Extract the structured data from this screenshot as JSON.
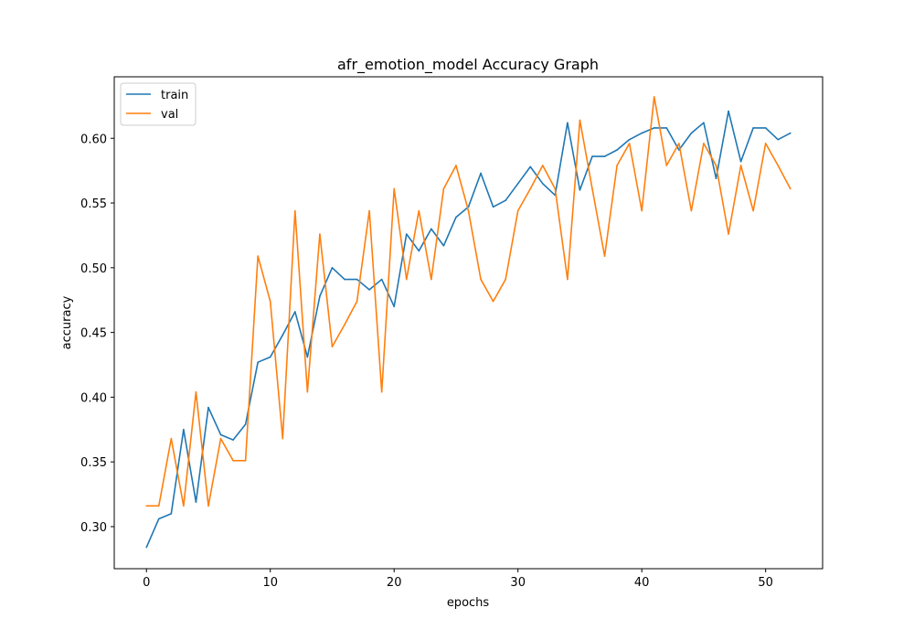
{
  "chart_data": {
    "type": "line",
    "title": "afr_emotion_model Accuracy Graph",
    "xlabel": "epochs",
    "ylabel": "accuracy",
    "xlim": [
      -2.6,
      54.6
    ],
    "ylim": [
      0.2675,
      0.6475
    ],
    "xticks": [
      0,
      10,
      20,
      30,
      40,
      50
    ],
    "yticks": [
      0.3,
      0.35,
      0.4,
      0.45,
      0.5,
      0.55,
      0.6
    ],
    "legend_position": "upper-left",
    "grid": false,
    "series": [
      {
        "name": "train",
        "color": "#1f77b4",
        "values": [
          0.284,
          0.306,
          0.31,
          0.375,
          0.319,
          0.392,
          0.371,
          0.367,
          0.379,
          0.427,
          0.431,
          0.448,
          0.466,
          0.431,
          0.478,
          0.5,
          0.491,
          0.491,
          0.483,
          0.491,
          0.47,
          0.526,
          0.513,
          0.53,
          0.517,
          0.539,
          0.547,
          0.573,
          0.547,
          0.552,
          0.565,
          0.578,
          0.565,
          0.556,
          0.612,
          0.56,
          0.586,
          0.586,
          0.591,
          0.599,
          0.604,
          0.608,
          0.608,
          0.591,
          0.604,
          0.612,
          0.569,
          0.621,
          0.582,
          0.608,
          0.608,
          0.599,
          0.604
        ]
      },
      {
        "name": "val",
        "color": "#ff7f0e",
        "values": [
          0.316,
          0.316,
          0.368,
          0.316,
          0.404,
          0.316,
          0.368,
          0.351,
          0.351,
          0.509,
          0.474,
          0.368,
          0.544,
          0.404,
          0.526,
          0.439,
          0.456,
          0.474,
          0.544,
          0.404,
          0.561,
          0.491,
          0.544,
          0.491,
          0.561,
          0.579,
          0.544,
          0.491,
          0.474,
          0.491,
          0.544,
          0.561,
          0.579,
          0.561,
          0.491,
          0.614,
          0.561,
          0.509,
          0.579,
          0.596,
          0.544,
          0.632,
          0.579,
          0.596,
          0.544,
          0.596,
          0.579,
          0.526,
          0.579,
          0.544,
          0.596,
          0.579,
          0.561
        ]
      }
    ]
  }
}
